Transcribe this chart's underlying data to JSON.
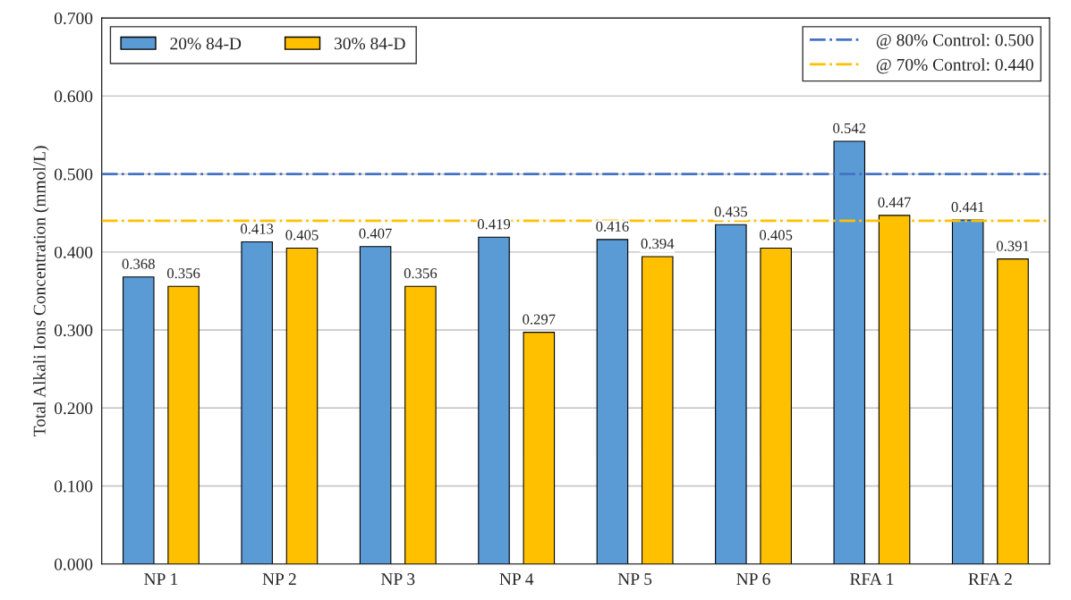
{
  "chart_data": {
    "type": "bar",
    "ylabel": "Total Alkali Ions Concentration (mmol/L)",
    "categories": [
      "NP 1",
      "NP 2",
      "NP 3",
      "NP 4",
      "NP 5",
      "NP 6",
      "RFA 1",
      "RFA 2"
    ],
    "series": [
      {
        "name": "20% 84-D",
        "color": "#5b9bd5",
        "values": [
          0.368,
          0.413,
          0.407,
          0.419,
          0.416,
          0.435,
          0.542,
          0.441
        ]
      },
      {
        "name": "30% 84-D",
        "color": "#ffc000",
        "values": [
          0.356,
          0.405,
          0.356,
          0.297,
          0.394,
          0.405,
          0.447,
          0.391
        ]
      }
    ],
    "ylim": [
      0,
      0.7
    ],
    "yticks": [
      {
        "value": 0,
        "label": "0.000"
      },
      {
        "value": 0.1,
        "label": "0.100"
      },
      {
        "value": 0.2,
        "label": "0.200"
      },
      {
        "value": 0.3,
        "label": "0.300"
      },
      {
        "value": 0.4,
        "label": "0.400"
      },
      {
        "value": 0.5,
        "label": "0.500"
      },
      {
        "value": 0.6,
        "label": "0.600"
      },
      {
        "value": 0.7,
        "label": "0.700"
      }
    ],
    "ref_lines": [
      {
        "axis": "y",
        "value": 0.5,
        "label": "@ 80% Control: 0.500",
        "color": "#4472c4",
        "line_style": "dashdot"
      },
      {
        "axis": "y",
        "value": 0.44,
        "label": "@ 70% Control: 0.440",
        "color": "#ffc000",
        "line_style": "dashdot"
      }
    ],
    "data_labels": true,
    "grid": "y",
    "legend": "top left"
  }
}
